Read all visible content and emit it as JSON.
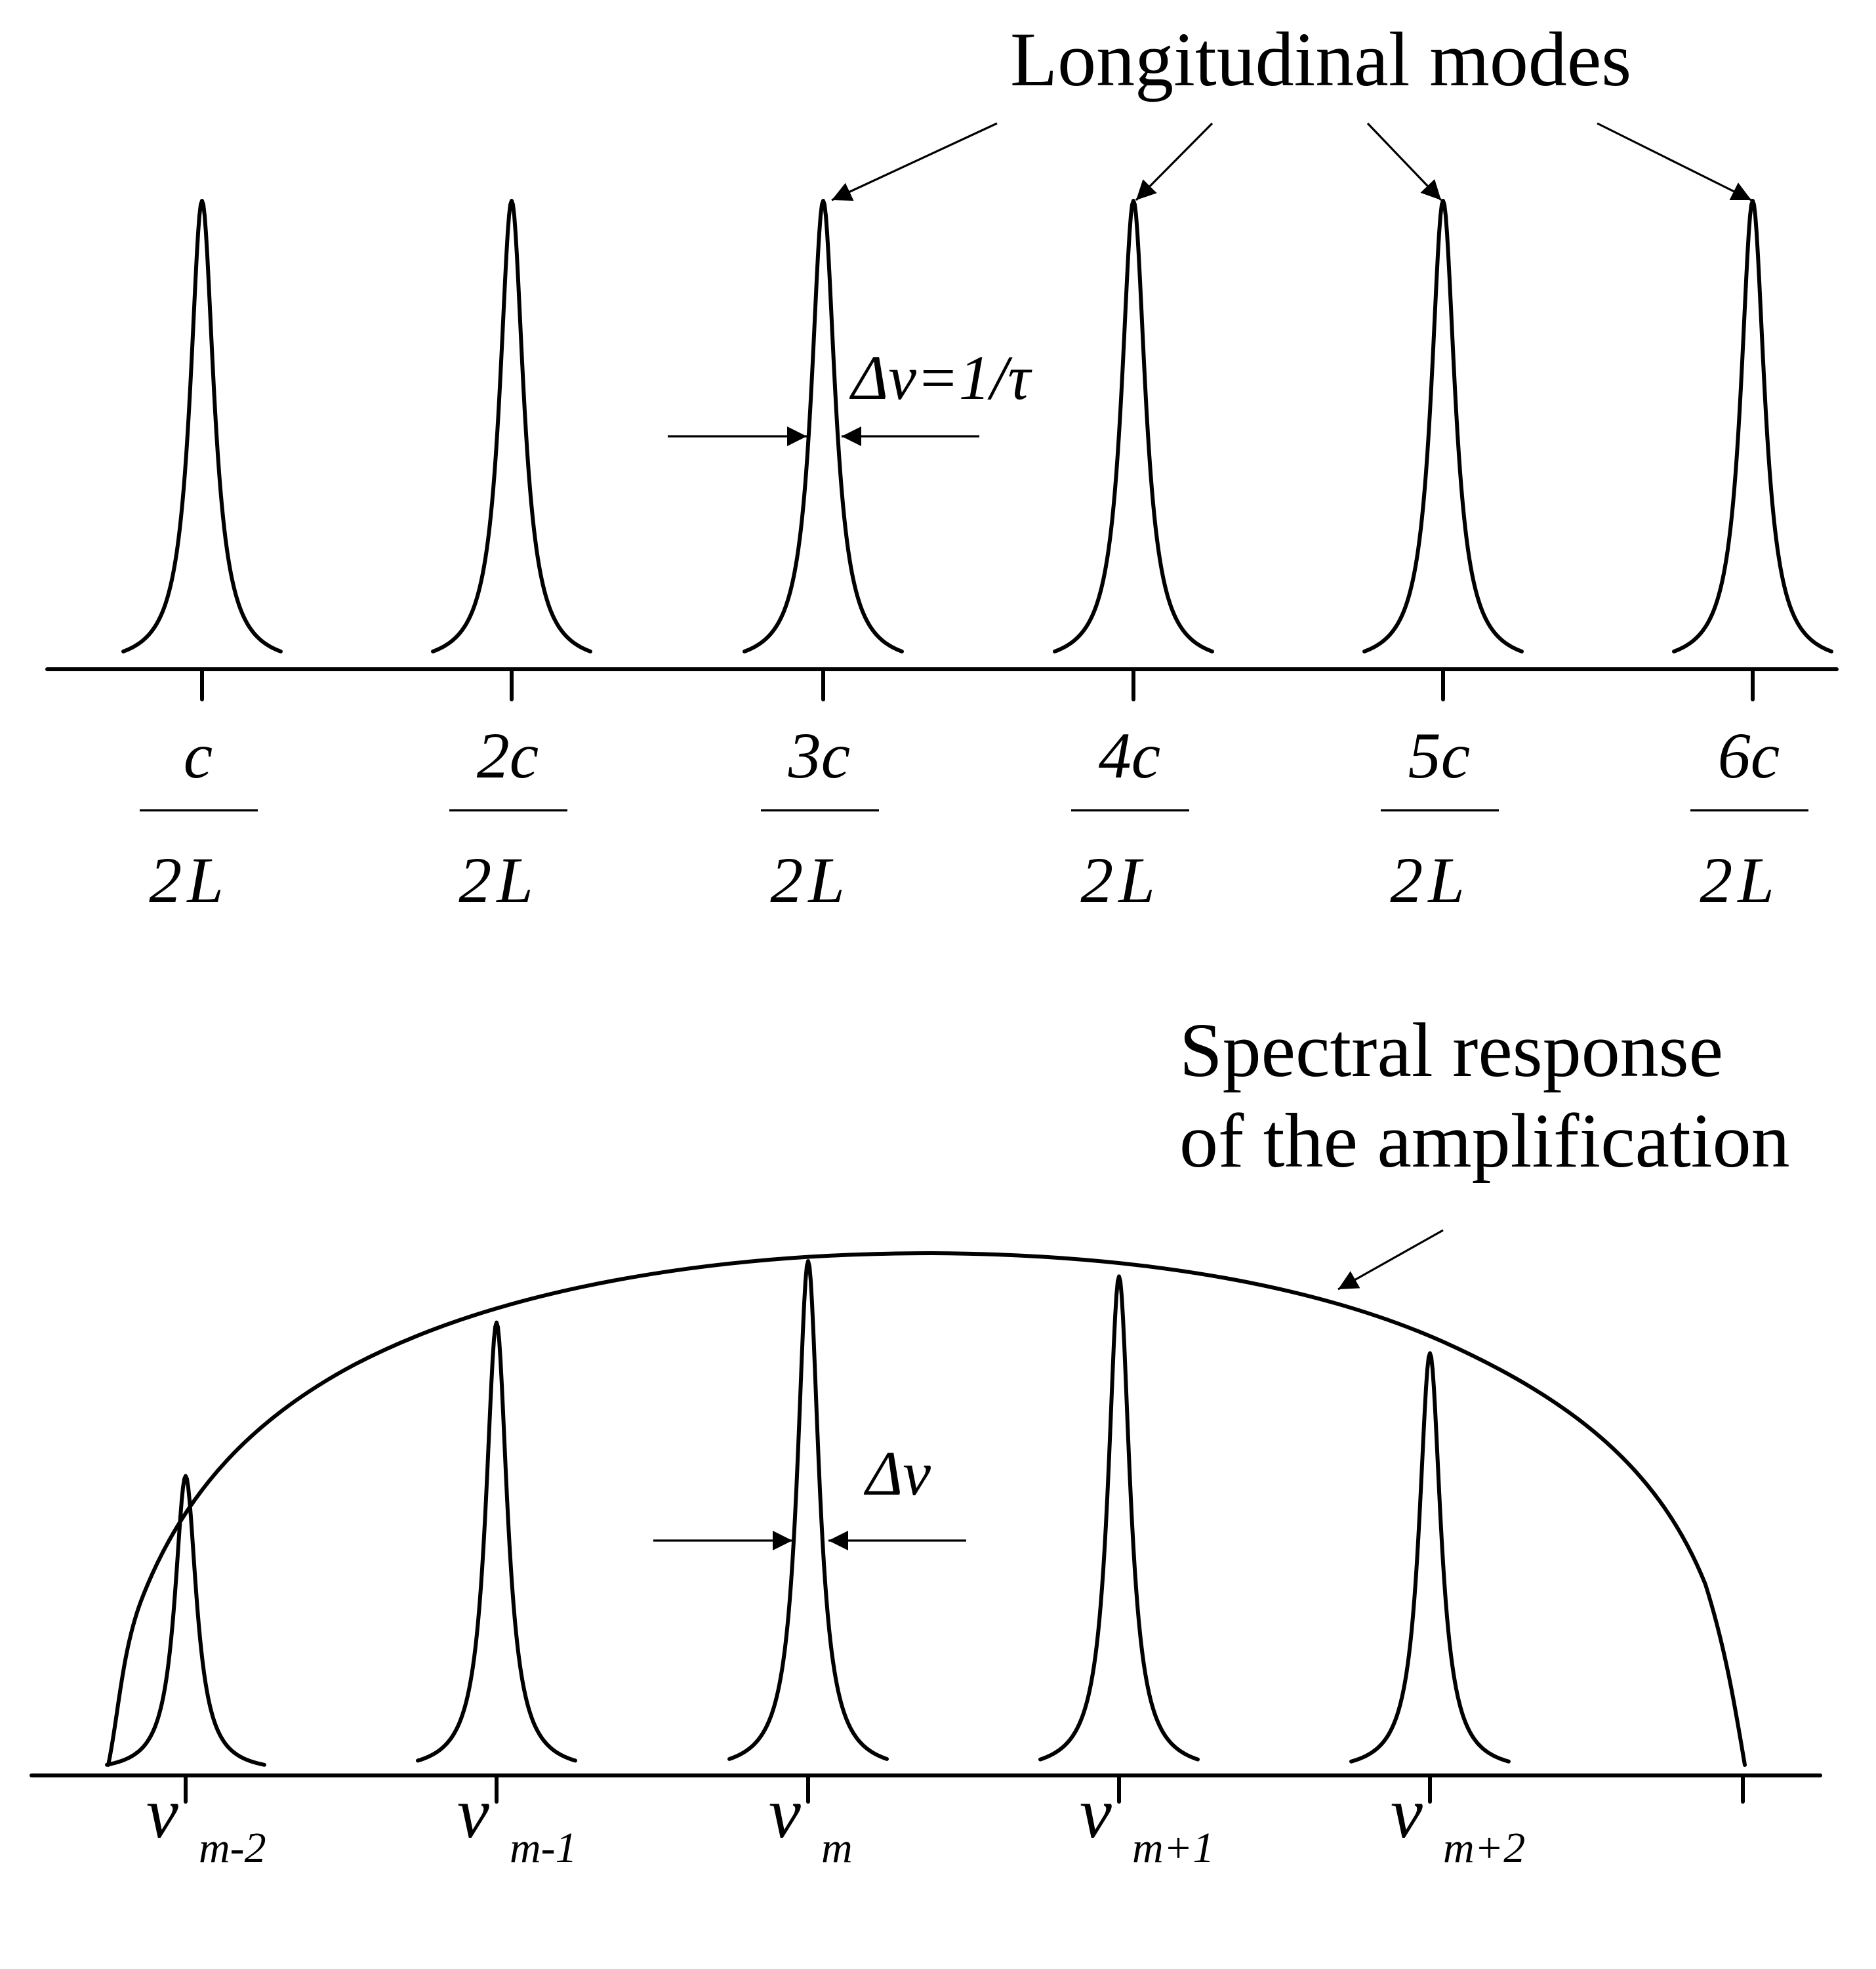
{
  "colors": {
    "ink": "#000000",
    "background": "#ffffff"
  },
  "top_panel": {
    "title": "Longitudinal modes",
    "width_label": "Δν=1/τ",
    "mode_labels": [
      {
        "numerator": "c",
        "denominator": "2L"
      },
      {
        "numerator": "2c",
        "denominator": "2L"
      },
      {
        "numerator": "3c",
        "denominator": "2L"
      },
      {
        "numerator": "4c",
        "denominator": "2L"
      },
      {
        "numerator": "5c",
        "denominator": "2L"
      },
      {
        "numerator": "6c",
        "denominator": "2L"
      }
    ],
    "mode_count": 6,
    "relative_peak_heights": [
      1,
      1,
      1,
      1,
      1,
      1
    ]
  },
  "bottom_panel": {
    "title_line1": "Spectral response",
    "title_line2": "of the amplification",
    "width_label": "Δν",
    "mode_labels": [
      {
        "symbol": "ν",
        "subscript": "m-2"
      },
      {
        "symbol": "ν",
        "subscript": "m-1"
      },
      {
        "symbol": "ν",
        "subscript": "m"
      },
      {
        "symbol": "ν",
        "subscript": "m+1"
      },
      {
        "symbol": "ν",
        "subscript": "m+2"
      }
    ],
    "relative_peak_heights": [
      0.58,
      0.88,
      1.0,
      0.97,
      0.82
    ]
  }
}
